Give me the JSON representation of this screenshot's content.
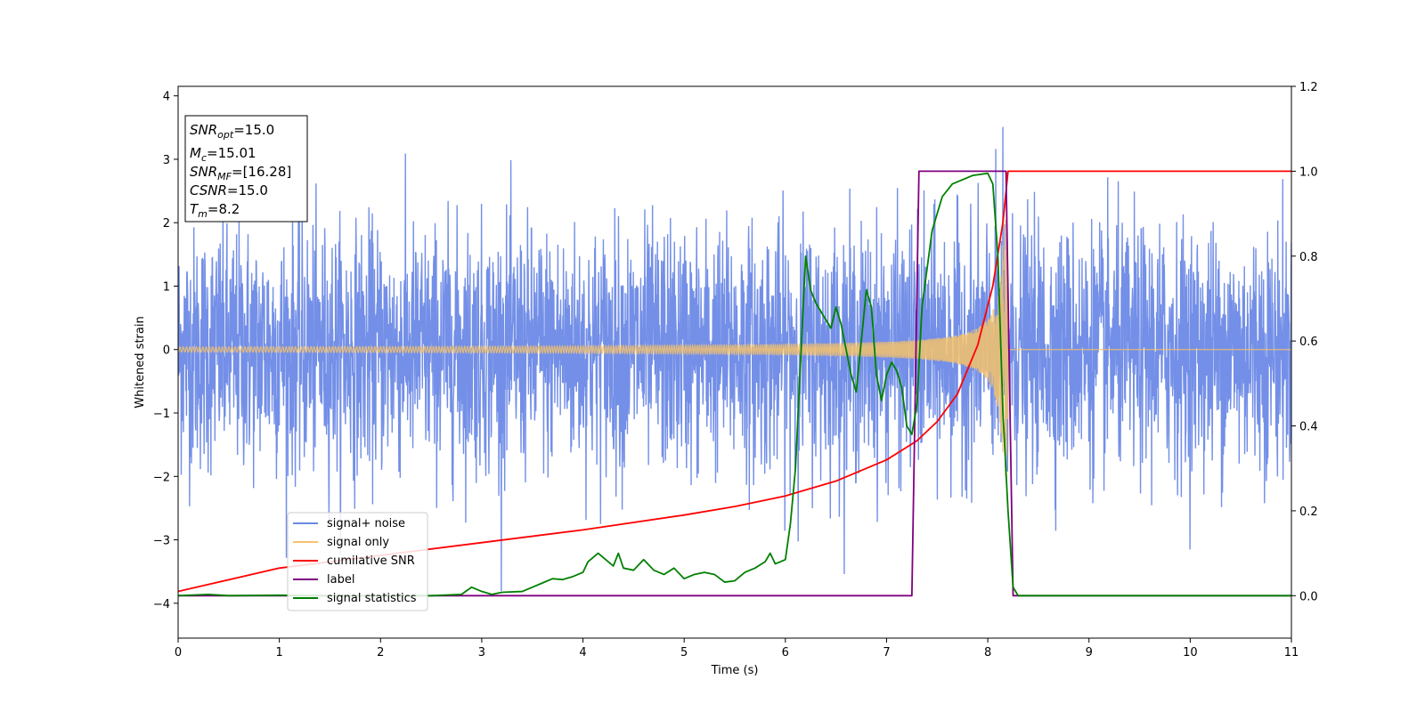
{
  "chart_data": {
    "type": "line",
    "xlabel": "Time (s)",
    "ylabel": "Whitened strain",
    "xlim": [
      0,
      11
    ],
    "ylim_left": [
      -4.55,
      4.15
    ],
    "ylim_right": [
      -0.1,
      1.2
    ],
    "xticks": [
      "0",
      "1",
      "2",
      "3",
      "4",
      "5",
      "6",
      "7",
      "8",
      "9",
      "10",
      "11"
    ],
    "yticks_left": [
      "4",
      "3",
      "2",
      "1",
      "0",
      "−1",
      "−2",
      "−3",
      "−4"
    ],
    "yticks_right": [
      "1.2",
      "1.0",
      "0.8",
      "0.6",
      "0.4",
      "0.2",
      "0.0"
    ],
    "info_box": {
      "snr_opt": "=15.0",
      "mc": "=15.01",
      "snr_mf": "=[16.28]",
      "csnr": "=15.0",
      "tm": "=8.2"
    },
    "legend_position": "lower-left",
    "series": [
      {
        "name": "signal+ noise",
        "color": "#6b89e6",
        "axis": "left",
        "description_range": [
          -4.1,
          3.8
        ]
      },
      {
        "name": "signal only",
        "color": "#f5c26b",
        "axis": "left",
        "chirp_end": 8.2,
        "amplitude_at_end": 2.1
      },
      {
        "name": "cumilative SNR",
        "color": "#ff0000",
        "axis": "right",
        "x": [
          0,
          1,
          2,
          3,
          4,
          5,
          5.5,
          6,
          6.5,
          7,
          7.3,
          7.5,
          7.7,
          7.9,
          8.05,
          8.15,
          8.2,
          11
        ],
        "y": [
          0.01,
          0.065,
          0.095,
          0.125,
          0.155,
          0.19,
          0.21,
          0.235,
          0.27,
          0.32,
          0.365,
          0.41,
          0.475,
          0.59,
          0.73,
          0.88,
          1.0,
          1.0
        ]
      },
      {
        "name": "label",
        "color": "#800080",
        "axis": "right",
        "x": [
          0,
          7.25,
          7.32,
          8.18,
          8.25,
          11
        ],
        "y": [
          0,
          0,
          1.0,
          1.0,
          0,
          0
        ]
      },
      {
        "name": "signal statistics",
        "color": "#008000",
        "axis": "right",
        "x": [
          0,
          0.3,
          0.5,
          1,
          1.5,
          2,
          2.5,
          2.8,
          2.9,
          3.0,
          3.1,
          3.2,
          3.4,
          3.5,
          3.6,
          3.7,
          3.8,
          3.9,
          4.0,
          4.05,
          4.15,
          4.25,
          4.3,
          4.35,
          4.4,
          4.5,
          4.6,
          4.7,
          4.8,
          4.9,
          5.0,
          5.1,
          5.2,
          5.3,
          5.4,
          5.5,
          5.6,
          5.7,
          5.8,
          5.85,
          5.9,
          6.0,
          6.05,
          6.1,
          6.15,
          6.2,
          6.25,
          6.3,
          6.35,
          6.45,
          6.5,
          6.55,
          6.65,
          6.7,
          6.75,
          6.8,
          6.85,
          6.9,
          6.95,
          7.0,
          7.05,
          7.1,
          7.15,
          7.2,
          7.25,
          7.3,
          7.35,
          7.45,
          7.55,
          7.65,
          7.75,
          7.85,
          8.0,
          8.05,
          8.1,
          8.15,
          8.2,
          8.25,
          8.3,
          9,
          10,
          11
        ],
        "y": [
          0,
          0.003,
          0.0,
          0.001,
          0.0,
          0.0,
          0.0,
          0.003,
          0.02,
          0.01,
          0.003,
          0.008,
          0.01,
          0.02,
          0.03,
          0.04,
          0.038,
          0.045,
          0.055,
          0.08,
          0.1,
          0.08,
          0.07,
          0.1,
          0.065,
          0.06,
          0.085,
          0.06,
          0.05,
          0.065,
          0.04,
          0.05,
          0.055,
          0.05,
          0.032,
          0.035,
          0.055,
          0.065,
          0.08,
          0.1,
          0.075,
          0.085,
          0.17,
          0.3,
          0.55,
          0.8,
          0.72,
          0.69,
          0.67,
          0.63,
          0.68,
          0.64,
          0.52,
          0.48,
          0.6,
          0.72,
          0.68,
          0.52,
          0.46,
          0.52,
          0.55,
          0.53,
          0.49,
          0.4,
          0.38,
          0.45,
          0.68,
          0.86,
          0.94,
          0.97,
          0.98,
          0.99,
          0.995,
          0.97,
          0.8,
          0.43,
          0.2,
          0.02,
          0.0,
          0.0,
          0.0,
          0.0
        ]
      }
    ]
  }
}
